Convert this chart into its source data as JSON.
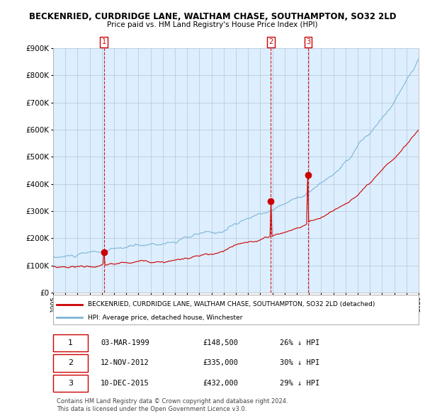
{
  "title": "BECKENRIED, CURDRIDGE LANE, WALTHAM CHASE, SOUTHAMPTON, SO32 2LD",
  "subtitle": "Price paid vs. HM Land Registry's House Price Index (HPI)",
  "ylim": [
    0,
    900000
  ],
  "yticks": [
    0,
    100000,
    200000,
    300000,
    400000,
    500000,
    600000,
    700000,
    800000,
    900000
  ],
  "ytick_labels": [
    "£0",
    "£100K",
    "£200K",
    "£300K",
    "£400K",
    "£500K",
    "£600K",
    "£700K",
    "£800K",
    "£900K"
  ],
  "sale_dates": [
    1999.17,
    2012.87,
    2015.93
  ],
  "sale_prices": [
    148500,
    335000,
    432000
  ],
  "sale_labels": [
    "1",
    "2",
    "3"
  ],
  "legend_property": "BECKENRIED, CURDRIDGE LANE, WALTHAM CHASE, SOUTHAMPTON, SO32 2LD (detached)",
  "legend_hpi": "HPI: Average price, detached house, Winchester",
  "table_rows": [
    [
      "1",
      "03-MAR-1999",
      "£148,500",
      "26% ↓ HPI"
    ],
    [
      "2",
      "12-NOV-2012",
      "£335,000",
      "30% ↓ HPI"
    ],
    [
      "3",
      "10-DEC-2015",
      "£432,000",
      "29% ↓ HPI"
    ]
  ],
  "footnote1": "Contains HM Land Registry data © Crown copyright and database right 2024.",
  "footnote2": "This data is licensed under the Open Government Licence v3.0.",
  "property_color": "#cc0000",
  "hpi_color": "#7eb6d4",
  "chart_bg": "#ddeeff",
  "sale_marker_color": "#cc0000",
  "sale_vline_color": "#cc0000",
  "grid_color": "#bbccdd",
  "bg_color": "#ffffff"
}
